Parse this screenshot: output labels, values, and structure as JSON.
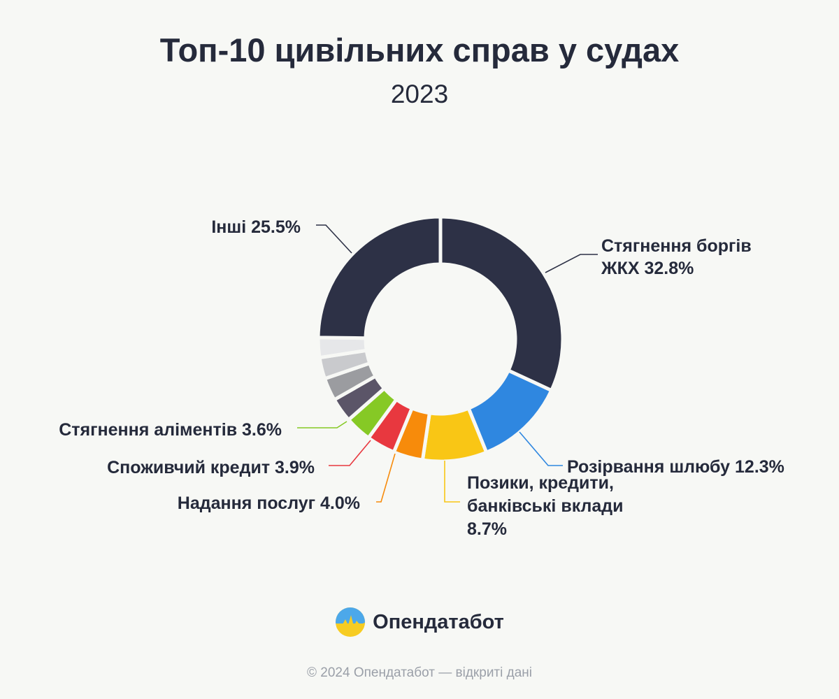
{
  "title": "Топ-10 цивільних справ у судах",
  "subtitle": "2023",
  "brand": {
    "name": "Опендатабот",
    "logo_icon": "opendatabot-logo-icon"
  },
  "footer": "© 2024 Опендатабот — відкриті дані",
  "chart_data": {
    "type": "pie",
    "variant": "donut",
    "title": "Топ-10 цивільних справ у судах",
    "subtitle": "2023",
    "unit": "%",
    "slices": [
      {
        "label_lines": [
          "Стягнення боргів",
          "ЖКХ 32.8%"
        ],
        "category": "Стягнення боргів ЖКХ",
        "value": 32.8,
        "color": "#2d3146"
      },
      {
        "label_lines": [
          "Розірвання шлюбу 12.3%"
        ],
        "category": "Розірвання шлюбу",
        "value": 12.3,
        "color": "#2f87e0"
      },
      {
        "label_lines": [
          "Позики, кредити,",
          "банківські вклади",
          "8.7%"
        ],
        "category": "Позики, кредити, банківські вклади",
        "value": 8.7,
        "color": "#f9c615"
      },
      {
        "label_lines": [
          "Надання послуг 4.0%"
        ],
        "category": "Надання послуг",
        "value": 4.0,
        "color": "#f78b0b"
      },
      {
        "label_lines": [
          "Споживчий кредит 3.9%"
        ],
        "category": "Споживчий кредит",
        "value": 3.9,
        "color": "#e8383f"
      },
      {
        "label_lines": [
          "Стягнення аліментів 3.6%"
        ],
        "category": "Стягнення аліментів",
        "value": 3.6,
        "color": "#86c925"
      },
      {
        "label_lines": [],
        "category": "",
        "value": 3.3,
        "color": "#5b5568"
      },
      {
        "label_lines": [],
        "category": "",
        "value": 3.1,
        "color": "#9b9ca0"
      },
      {
        "label_lines": [],
        "category": "",
        "value": 2.9,
        "color": "#c9cacd"
      },
      {
        "label_lines": [],
        "category": "",
        "value": 2.7,
        "color": "#e6e7e9"
      },
      {
        "label_lines": [
          "Інші 25.5%"
        ],
        "category": "Інші",
        "value": 25.5,
        "color": "#2d3146"
      }
    ]
  }
}
